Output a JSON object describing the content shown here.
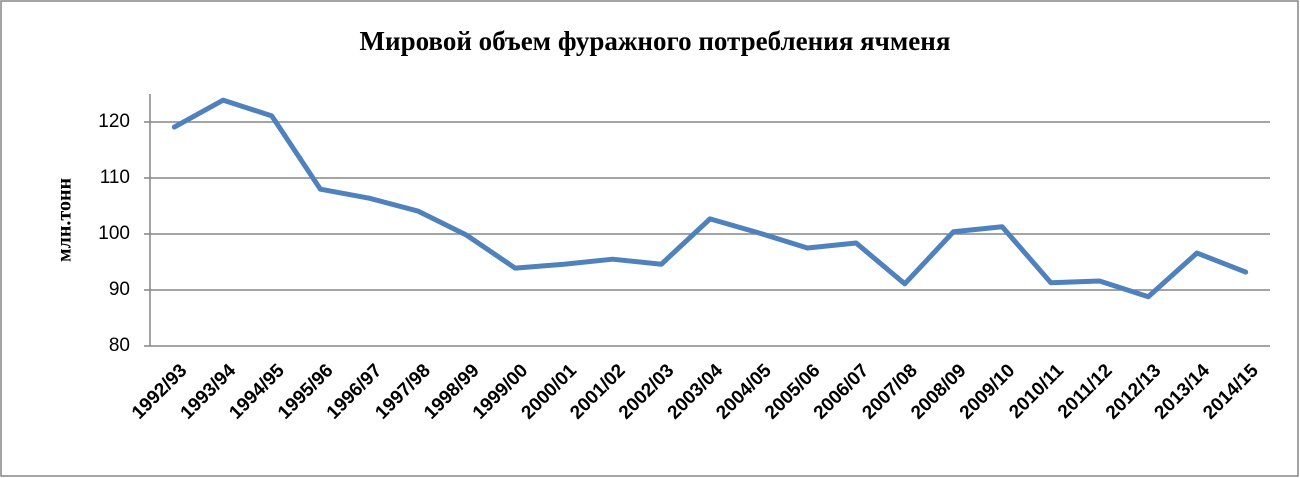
{
  "chart_data": {
    "type": "line",
    "title": "Мировой объем фуражного потребления ячменя",
    "y_label": "млн.тонн",
    "categories": [
      "1992/93",
      "1993/94",
      "1994/95",
      "1995/96",
      "1996/97",
      "1997/98",
      "1998/99",
      "1999/00",
      "2000/01",
      "2001/02",
      "2002/03",
      "2003/04",
      "2004/05",
      "2005/06",
      "2006/07",
      "2007/08",
      "2008/09",
      "2009/10",
      "2010/11",
      "2011/12",
      "2012/13",
      "2013/14",
      "2014/15"
    ],
    "series": [
      {
        "name": "Мировой объем фуражного потребления ячменя",
        "color": "#4f81bd",
        "values": [
          119.1,
          123.9,
          121.1,
          108.0,
          106.4,
          104.1,
          99.8,
          93.9,
          94.6,
          95.5,
          94.6,
          102.7,
          100.2,
          97.5,
          98.4,
          91.1,
          100.4,
          101.3,
          91.3,
          91.6,
          88.8,
          96.6,
          93.2
        ]
      }
    ],
    "ylim": [
      80,
      125
    ],
    "yticks": [
      80,
      90,
      100,
      110,
      120
    ],
    "grid": true
  }
}
